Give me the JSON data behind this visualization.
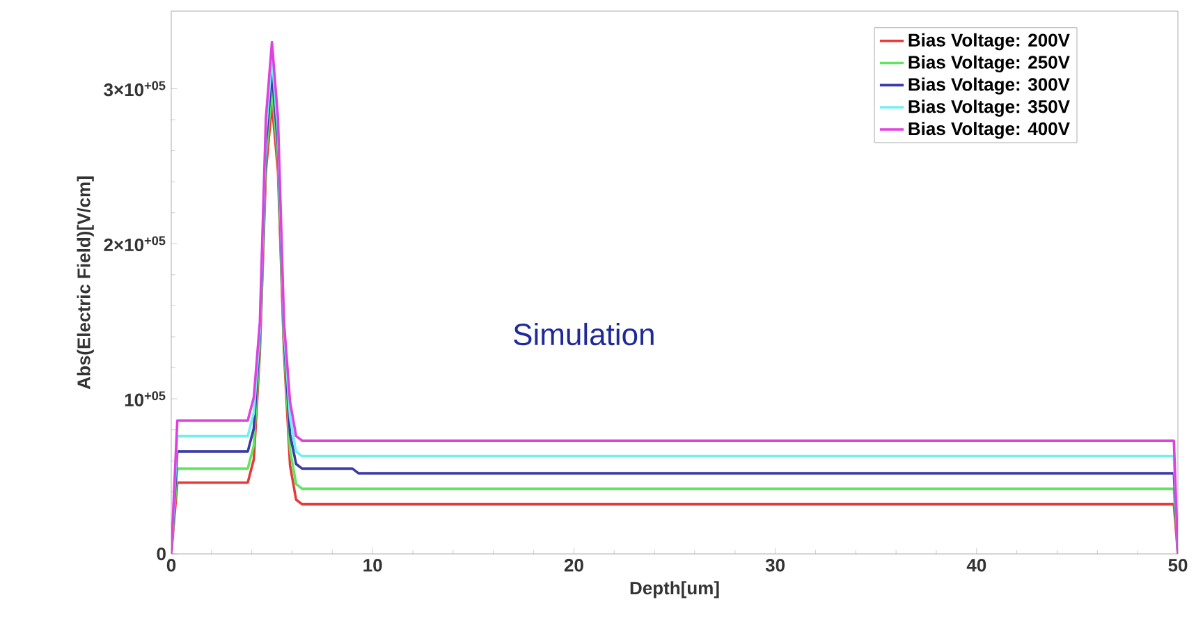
{
  "chart_data": {
    "type": "line",
    "xlabel": "Depth[um]",
    "ylabel": "Abs(Electric Field)[V/cm]",
    "annotations": [
      "Simulation"
    ],
    "xlim": [
      0,
      50
    ],
    "xticks": [
      0,
      10,
      20,
      30,
      40,
      50
    ],
    "ylim": [
      0,
      350000
    ],
    "yticks": [
      0,
      {
        "value": 100000,
        "label": "10$^{+05}$"
      },
      {
        "value": 200000,
        "label": "2×10$^{+05}$"
      },
      {
        "value": 300000,
        "label": "3×10$^{+05}$"
      }
    ],
    "legend": "top right",
    "line_style": "solid",
    "x": [
      0,
      0.3,
      3.8,
      4.1,
      4.4,
      4.7,
      5.0,
      5.3,
      5.6,
      5.9,
      6.2,
      6.5,
      49.8,
      50
    ],
    "series": [
      {
        "name": "Bias Voltage: 200V",
        "color": "#e8393a",
        "values": [
          0,
          46000,
          46000,
          61000,
          130000,
          247000,
          290000,
          247000,
          130000,
          57000,
          35000,
          32000,
          32000,
          0
        ]
      },
      {
        "name": "Bias Voltage: 250V",
        "color": "#5ee65e",
        "values": [
          0,
          55000,
          55000,
          70000,
          135000,
          255000,
          300000,
          255000,
          135000,
          67000,
          45000,
          42000,
          42000,
          0
        ]
      },
      {
        "name": "Bias Voltage: 300V",
        "color": "#3a3aa8",
        "x": [
          0,
          0.3,
          3.8,
          4.1,
          4.4,
          4.7,
          5.0,
          5.3,
          5.6,
          5.9,
          6.2,
          6.5,
          9.0,
          9.3,
          49.8,
          50
        ],
        "values": [
          0,
          66000,
          66000,
          81000,
          140000,
          264000,
          310000,
          264000,
          140000,
          77000,
          58000,
          55000,
          55000,
          52000,
          52000,
          0
        ]
      },
      {
        "name": "Bias Voltage: 350V",
        "color": "#6ff0f0",
        "values": [
          0,
          76000,
          76000,
          91000,
          144000,
          272000,
          320000,
          272000,
          144000,
          88000,
          66000,
          63000,
          63000,
          0
        ]
      },
      {
        "name": "Bias Voltage: 400V",
        "color": "#e040e0",
        "values": [
          0,
          86000,
          86000,
          101000,
          149000,
          281000,
          330000,
          281000,
          149000,
          98000,
          76000,
          73000,
          73000,
          0
        ]
      }
    ]
  }
}
